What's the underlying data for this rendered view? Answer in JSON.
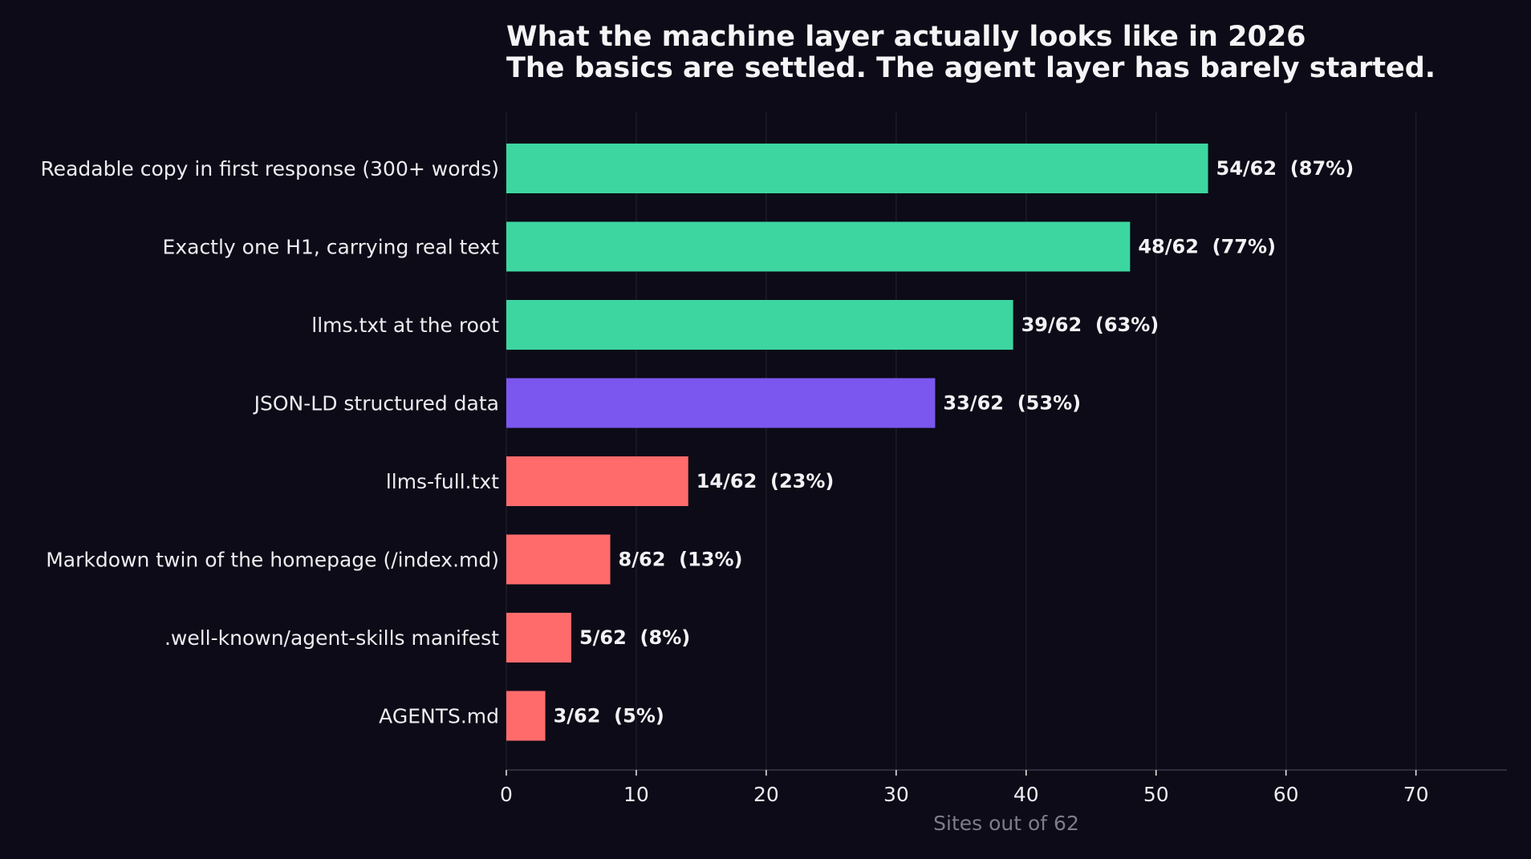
{
  "chart_data": {
    "type": "bar",
    "orientation": "horizontal",
    "title": "What the machine layer actually looks like in 2026",
    "subtitle": "The basics are settled. The agent layer has barely started.",
    "xlabel": "Sites out of 62",
    "xlim": [
      0,
      77
    ],
    "xticks": [
      0,
      10,
      20,
      30,
      40,
      50,
      60,
      70
    ],
    "grid": "vertical",
    "categories": [
      "Readable copy in first response (300+ words)",
      "Exactly one H1, carrying real text",
      "llms.txt at the root",
      "JSON-LD structured data",
      "llms-full.txt",
      "Markdown twin of the homepage (/index.md)",
      ".well-known/agent-skills manifest",
      "AGENTS.md"
    ],
    "values": [
      54,
      48,
      39,
      33,
      14,
      8,
      5,
      3
    ],
    "data_labels": [
      "54/62  (87%)",
      "48/62  (77%)",
      "39/62  (63%)",
      "33/62  (53%)",
      "14/62  (23%)",
      "8/62  (13%)",
      "5/62  (8%)",
      "3/62  (5%)"
    ],
    "bar_colors": [
      "#3dd6a0",
      "#3dd6a0",
      "#3dd6a0",
      "#7b57ef",
      "#ff6b6b",
      "#ff6b6b",
      "#ff6b6b",
      "#ff6b6b"
    ],
    "background_color": "#0c0b17",
    "grid_color": "#1d1c2a",
    "axis_color": "#3a3948"
  }
}
